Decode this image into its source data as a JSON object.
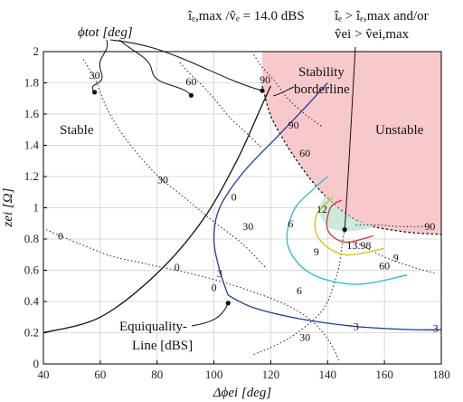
{
  "chart_data": {
    "type": "contour",
    "xlabel": "Δϕei [deg]",
    "ylabel": "zei [Ω]",
    "xlim": [
      40,
      180
    ],
    "ylim": [
      0,
      2
    ],
    "xticks": [
      40,
      60,
      80,
      100,
      120,
      140,
      160,
      180
    ],
    "yticks": [
      0,
      0.2,
      0.4,
      0.6,
      0.8,
      1,
      1.2,
      1.4,
      1.6,
      1.8,
      2
    ],
    "grid": true,
    "header": "îₑ,max /v̂ₑ = 14.0 dBS",
    "annotations": {
      "phi_tot": "ϕtot [deg]",
      "region_stable": "Stable",
      "region_unstable": "Unstable",
      "stability_borderline": [
        "Stability",
        "borderline"
      ],
      "equiquality": [
        "Equiquality-",
        "Line [dBS]"
      ],
      "limit_condition": [
        "îₑ > îₑ,max and/or",
        "v̂ei > v̂ei,max"
      ]
    },
    "unstable_region_boundary": [
      [
        117,
        1.78
      ],
      [
        120,
        1.59
      ],
      [
        125,
        1.42
      ],
      [
        130,
        1.28
      ],
      [
        135,
        1.16
      ],
      [
        140,
        1.06
      ],
      [
        145,
        0.98
      ],
      [
        150,
        0.92
      ],
      [
        156,
        0.88
      ],
      [
        162,
        0.86
      ],
      [
        170,
        0.84
      ],
      [
        180,
        0.83
      ]
    ],
    "phi_tot_contours": [
      {
        "value": -30,
        "points": [
          [
            54,
            1.95
          ],
          [
            58,
            1.83
          ],
          [
            62,
            1.65
          ],
          [
            66,
            1.52
          ],
          [
            72,
            1.37
          ],
          [
            80,
            1.21
          ],
          [
            90,
            1.06
          ],
          [
            100,
            0.91
          ],
          [
            110,
            0.77
          ],
          [
            118,
            0.62
          ]
        ]
      },
      {
        "value": -60,
        "points": [
          [
            88,
            1.93
          ],
          [
            92,
            1.85
          ],
          [
            96,
            1.78
          ],
          [
            100,
            1.7
          ],
          [
            106,
            1.57
          ],
          [
            112,
            1.47
          ],
          [
            117,
            1.38
          ]
        ]
      },
      {
        "value": -90,
        "points": [
          [
            114,
            1.98
          ],
          [
            117,
            1.9
          ],
          [
            121,
            1.82
          ],
          [
            126,
            1.7
          ],
          [
            132,
            1.6
          ],
          [
            138,
            1.52
          ]
        ]
      },
      {
        "value": 0,
        "points": [
          [
            41,
            0.86
          ],
          [
            46,
            0.82
          ],
          [
            54,
            0.76
          ],
          [
            64,
            0.69
          ],
          [
            74,
            0.65
          ],
          [
            84,
            0.61
          ],
          [
            94,
            0.57
          ],
          [
            104,
            0.52
          ],
          [
            114,
            0.46
          ],
          [
            124,
            0.39
          ],
          [
            132,
            0.31
          ],
          [
            138,
            0.21
          ],
          [
            142,
            0.1
          ],
          [
            144,
            0.02
          ]
        ]
      },
      {
        "value": 30,
        "points": [
          [
            114,
            0.06
          ],
          [
            126,
            0.16
          ],
          [
            136,
            0.3
          ],
          [
            140,
            0.4
          ],
          [
            142,
            0.5
          ],
          [
            144,
            0.62
          ],
          [
            145,
            0.75
          ],
          [
            146,
            0.86
          ]
        ]
      },
      {
        "value": 90,
        "points": [
          [
            150,
            0.89
          ],
          [
            158,
            0.89
          ],
          [
            166,
            0.88
          ],
          [
            176,
            0.88
          ]
        ]
      },
      {
        "value": 60,
        "points": [
          [
            150,
            0.78
          ],
          [
            156,
            0.72
          ],
          [
            162,
            0.67
          ],
          [
            170,
            0.62
          ],
          [
            178,
            0.58
          ]
        ]
      }
    ],
    "phi_tot_labels": [
      {
        "text": "30",
        "x": 58,
        "y": 1.85
      },
      {
        "text": "60",
        "x": 92,
        "y": 1.81
      },
      {
        "text": "90",
        "x": 118,
        "y": 1.82
      },
      {
        "text": "90",
        "x": 128,
        "y": 1.53
      },
      {
        "text": "60",
        "x": 132,
        "y": 1.35
      },
      {
        "text": "30",
        "x": 82,
        "y": 1.18
      },
      {
        "text": "30",
        "x": 112,
        "y": 0.88
      },
      {
        "text": "0",
        "x": 46,
        "y": 0.82
      },
      {
        "text": "0",
        "x": 100,
        "y": 0.49
      },
      {
        "text": "30",
        "x": 132,
        "y": 0.17
      },
      {
        "text": "60",
        "x": 160,
        "y": 0.63
      },
      {
        "text": "90",
        "x": 176,
        "y": 0.88
      }
    ],
    "equiquality_contours": [
      {
        "level": 0,
        "color": "#111111",
        "points": [
          [
            40,
            0.2
          ],
          [
            60,
            0.3
          ],
          [
            80,
            0.58
          ],
          [
            96,
            0.92
          ],
          [
            108,
            1.3
          ],
          [
            116,
            1.62
          ],
          [
            120,
            1.78
          ]
        ]
      },
      {
        "level": 0,
        "color": "#1f3b9a",
        "points": [
          [
            105,
            0.44
          ],
          [
            102,
            0.6
          ],
          [
            100,
            0.8
          ],
          [
            102,
            1.0
          ],
          [
            110,
            1.22
          ],
          [
            122,
            1.45
          ],
          [
            132,
            1.64
          ],
          [
            140,
            1.8
          ]
        ]
      },
      {
        "level": 3,
        "color": "#1f3b9a",
        "points": [
          [
            105,
            0.44
          ],
          [
            114,
            0.36
          ],
          [
            130,
            0.29
          ],
          [
            150,
            0.24
          ],
          [
            170,
            0.22
          ],
          [
            180,
            0.22
          ]
        ]
      },
      {
        "level": 6,
        "color": "#2ab7cf",
        "points": [
          [
            168,
            0.57
          ],
          [
            150,
            0.51
          ],
          [
            134,
            0.58
          ],
          [
            126,
            0.76
          ],
          [
            128,
            0.98
          ],
          [
            135,
            1.12
          ],
          [
            140,
            1.2
          ]
        ]
      },
      {
        "level": 9,
        "color": "#d4bf12",
        "points": [
          [
            160,
            0.74
          ],
          [
            146,
            0.7
          ],
          [
            137,
            0.8
          ],
          [
            136,
            0.95
          ],
          [
            142,
            1.07
          ]
        ]
      },
      {
        "level": 12,
        "color": "#d4333a",
        "points": [
          [
            156,
            0.82
          ],
          [
            146,
            0.78
          ],
          [
            140,
            0.86
          ],
          [
            141,
            1.0
          ],
          [
            145,
            1.05
          ]
        ]
      }
    ],
    "level_labels": [
      {
        "text": "0",
        "x": 87,
        "y": 0.62
      },
      {
        "text": "0",
        "x": 107,
        "y": 1.07
      },
      {
        "text": "3",
        "x": 102,
        "y": 0.58
      },
      {
        "text": "3",
        "x": 150,
        "y": 0.24
      },
      {
        "text": "3",
        "x": 178,
        "y": 0.23
      },
      {
        "text": "6",
        "x": 127,
        "y": 0.9
      },
      {
        "text": "6",
        "x": 130,
        "y": 0.47
      },
      {
        "text": "9",
        "x": 136,
        "y": 0.72
      },
      {
        "text": "9",
        "x": 164,
        "y": 0.68
      },
      {
        "text": "12",
        "x": 138,
        "y": 0.99
      },
      {
        "text": "13.98",
        "x": 151,
        "y": 0.76
      }
    ],
    "optimum_region": {
      "label": "13.98",
      "center": [
        146,
        0.86
      ],
      "points": [
        [
          139,
          1.08
        ],
        [
          137,
          0.98
        ],
        [
          140,
          0.88
        ],
        [
          146,
          0.85
        ],
        [
          152,
          0.86
        ],
        [
          156,
          0.88
        ],
        [
          150,
          0.92
        ],
        [
          145,
          0.98
        ],
        [
          140,
          1.06
        ]
      ]
    },
    "markers": {
      "phi_tot_markers": [
        [
          58,
          1.74
        ],
        [
          92,
          1.72
        ],
        [
          117,
          1.75
        ]
      ],
      "optimum": [
        146,
        0.86
      ],
      "equiquality_point": [
        105,
        0.39
      ]
    },
    "colors": {
      "unstable_fill": "#f8c9cc",
      "optimum_fill": "#cde9dc",
      "grid": "#cfcfcf"
    }
  }
}
